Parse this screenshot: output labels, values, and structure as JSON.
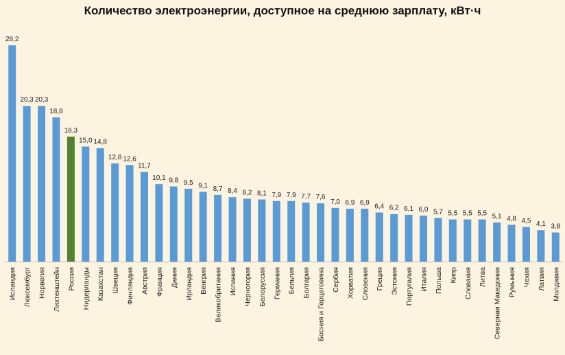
{
  "chart_data": {
    "type": "bar",
    "title": "Количество электроэнергии, доступное на среднюю зарплату, кВт·ч",
    "xlabel": "",
    "ylabel": "",
    "ylim": [
      0,
      28.2
    ],
    "grid": false,
    "legend": "none",
    "colors": {
      "default": "#5b9bd5",
      "highlight": "#548235"
    },
    "highlight_category": "Россия",
    "categories": [
      "Исландия",
      "Люксембург",
      "Норвегия",
      "Лихтенштейн",
      "Россия",
      "Нидерланды",
      "Казахстан",
      "Швеция",
      "Финляндия",
      "Австрия",
      "Франция",
      "Дания",
      "Ирландия",
      "Венгрия",
      "Великобритания",
      "Испания",
      "Черногория",
      "Белоруссия",
      "Германия",
      "Бельгия",
      "Болгария",
      "Босния и Герцеговина",
      "Сербия",
      "Хорватия",
      "Словения",
      "Греция",
      "Эстония",
      "Португалия",
      "Италия",
      "Польша",
      "Кипр",
      "Словакия",
      "Литва",
      "Северная Македония",
      "Румыния",
      "Чехия",
      "Латвия",
      "Молдавия"
    ],
    "values": [
      28.2,
      20.3,
      20.3,
      18.8,
      16.3,
      15.0,
      14.8,
      12.8,
      12.6,
      11.7,
      10.1,
      9.8,
      9.5,
      9.1,
      8.7,
      8.4,
      8.2,
      8.1,
      7.9,
      7.9,
      7.7,
      7.6,
      7.0,
      6.9,
      6.9,
      6.4,
      6.2,
      6.1,
      6.0,
      5.7,
      5.5,
      5.5,
      5.5,
      5.1,
      4.8,
      4.5,
      4.1,
      3.8
    ],
    "value_labels": [
      "28,2",
      "20,3",
      "20,3",
      "18,8",
      "16,3",
      "15,0",
      "14,8",
      "12,8",
      "12,6",
      "11,7",
      "10,1",
      "9,8",
      "9,5",
      "9,1",
      "8,7",
      "8,4",
      "8,2",
      "8,1",
      "7,9",
      "7,9",
      "7,7",
      "7,6",
      "7,0",
      "6,9",
      "6,9",
      "6,4",
      "6,2",
      "6,1",
      "6,0",
      "5,7",
      "5,5",
      "5,5",
      "5,5",
      "5,1",
      "4,8",
      "4,5",
      "4,1",
      "3,8"
    ]
  }
}
